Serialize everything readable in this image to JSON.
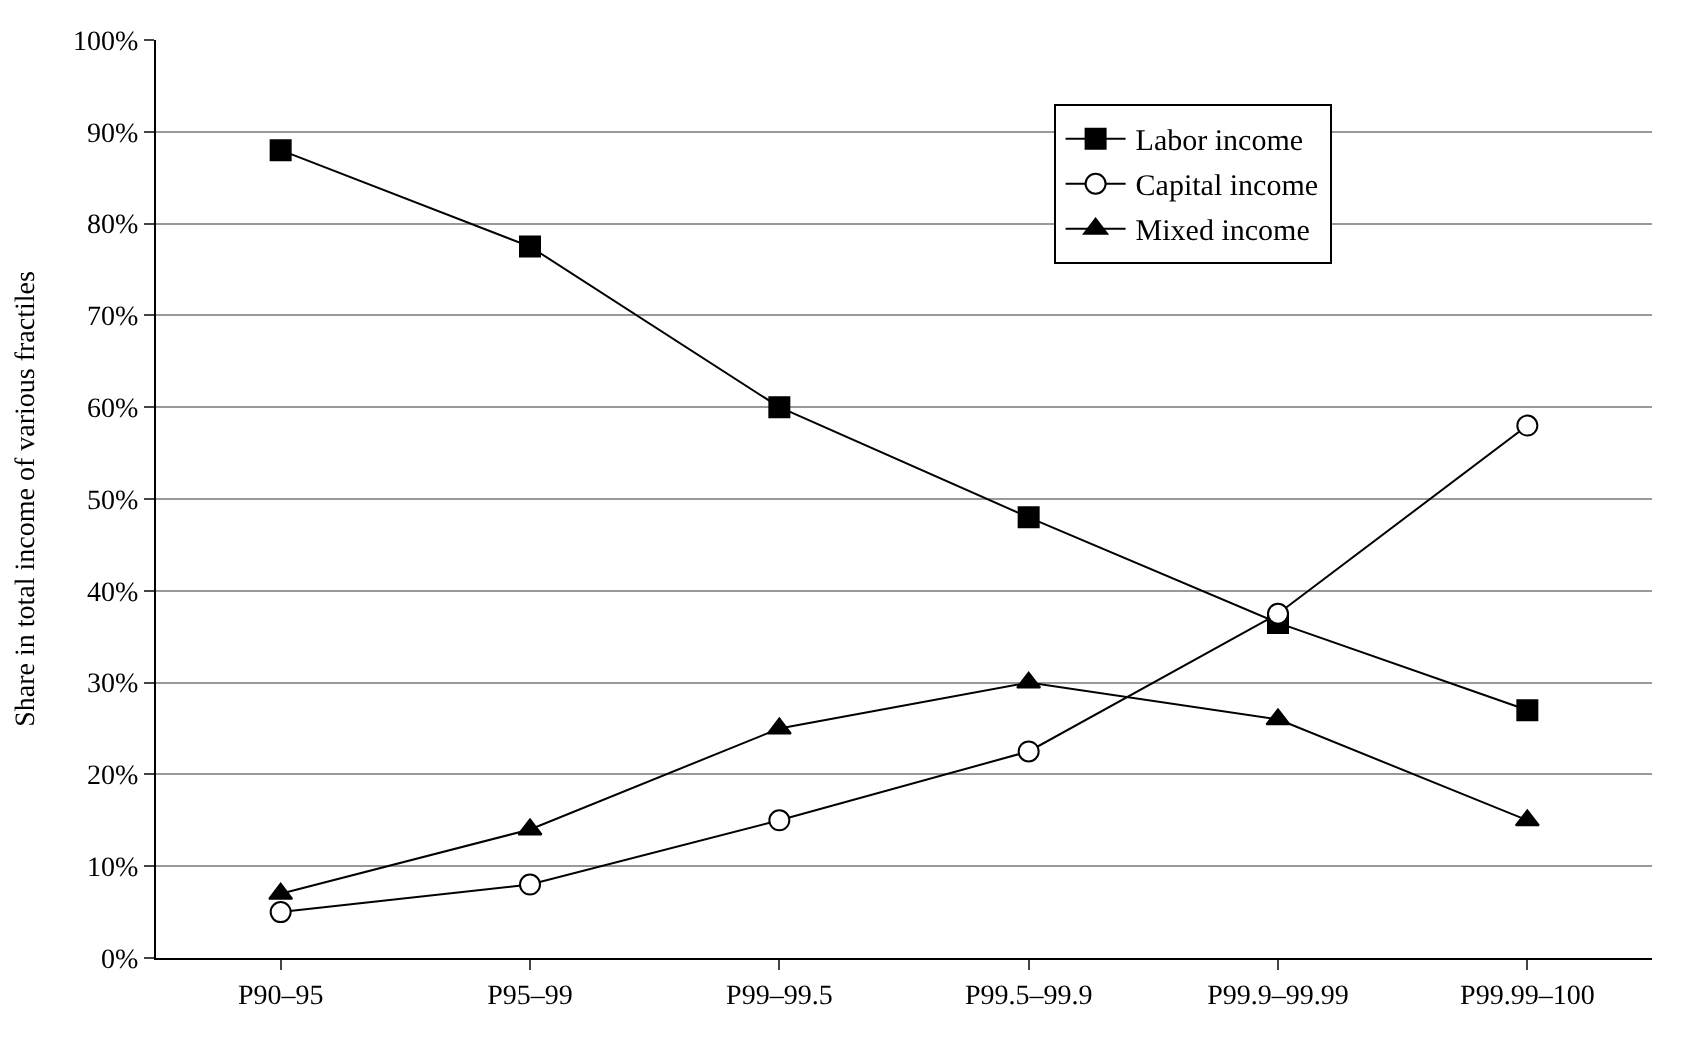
{
  "chart_data": {
    "type": "line",
    "ylabel": "Share in total income of various fractiles",
    "categories": [
      "P90–95",
      "P95–99",
      "P99–99.5",
      "P99.5–99.9",
      "P99.9–99.99",
      "P99.99–100"
    ],
    "series": [
      {
        "name": "Labor income",
        "color": "#000000",
        "marker": "square",
        "values": [
          88,
          77.5,
          60,
          48,
          36.5,
          27
        ]
      },
      {
        "name": "Capital income",
        "color": "#000000",
        "marker": "circle",
        "values": [
          5,
          8,
          15,
          22.5,
          37.5,
          58
        ]
      },
      {
        "name": "Mixed income",
        "color": "#000000",
        "marker": "triangle",
        "values": [
          7,
          14,
          25,
          30,
          26,
          15
        ]
      }
    ],
    "ylim": [
      0,
      100
    ],
    "yticks": [
      {
        "value": 0,
        "label": "0%"
      },
      {
        "value": 10,
        "label": "10%"
      },
      {
        "value": 20,
        "label": "20%"
      },
      {
        "value": 30,
        "label": "30%"
      },
      {
        "value": 40,
        "label": "40%"
      },
      {
        "value": 50,
        "label": "50%"
      },
      {
        "value": 60,
        "label": "60%"
      },
      {
        "value": 70,
        "label": "70%"
      },
      {
        "value": 80,
        "label": "80%"
      },
      {
        "value": 90,
        "label": "90%"
      },
      {
        "value": 100,
        "label": "100%"
      }
    ],
    "grid": "y",
    "legend": "top right",
    "line_style": "solid"
  }
}
